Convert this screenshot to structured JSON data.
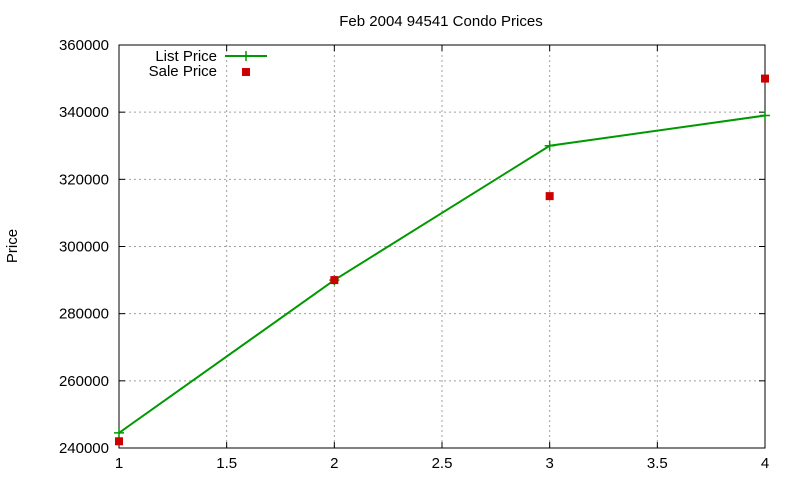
{
  "chart_data": {
    "type": "line",
    "title": "Feb 2004 94541 Condo Prices",
    "xlabel": "",
    "ylabel": "Price",
    "xlim": [
      1,
      4
    ],
    "ylim": [
      240000,
      360000
    ],
    "xticks": [
      "1",
      "1.5",
      "2",
      "2.5",
      "3",
      "3.5",
      "4"
    ],
    "yticks": [
      "240000",
      "260000",
      "280000",
      "300000",
      "320000",
      "340000",
      "360000"
    ],
    "grid": true,
    "legend_position": "top-left",
    "series": [
      {
        "name": "List Price",
        "style": "line-with-plus-markers",
        "color": "#009900",
        "x": [
          1,
          2,
          3,
          4
        ],
        "y": [
          244500,
          290000,
          330000,
          339000
        ]
      },
      {
        "name": "Sale Price",
        "style": "square-markers",
        "color": "#cc0000",
        "x": [
          1,
          2,
          3,
          4
        ],
        "y": [
          242000,
          290000,
          315000,
          350000
        ]
      }
    ]
  }
}
